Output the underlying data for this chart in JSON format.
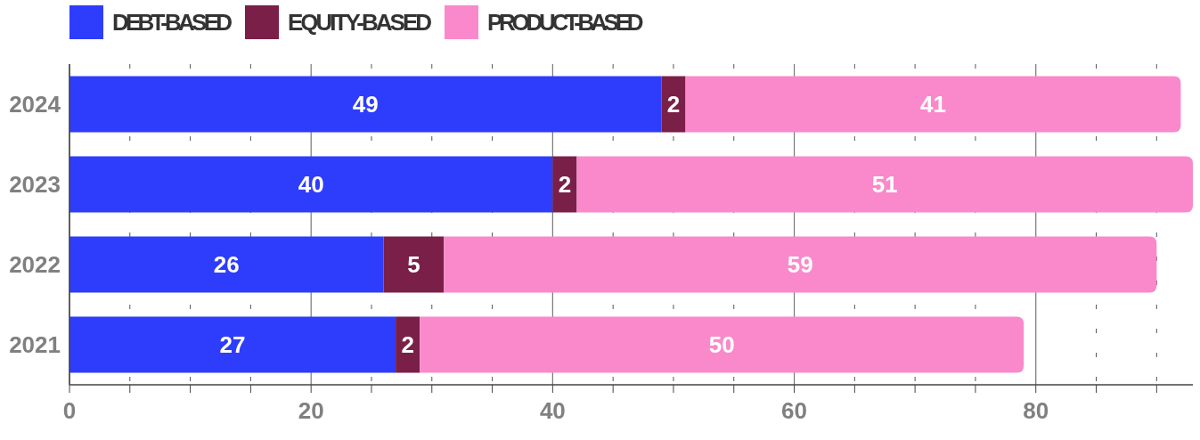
{
  "chart_data": {
    "type": "bar",
    "orientation": "horizontal",
    "stacked": true,
    "categories": [
      "2024",
      "2023",
      "2022",
      "2021"
    ],
    "series": [
      {
        "name": "DEBT-BASED",
        "color": "#2e3cfc",
        "values": [
          49,
          40,
          26,
          27
        ]
      },
      {
        "name": "EQUITY-BASED",
        "color": "#7a1f48",
        "values": [
          2,
          2,
          5,
          2
        ]
      },
      {
        "name": "PRODUCT-BASED",
        "color": "#fa89cb",
        "values": [
          41,
          51,
          59,
          50
        ]
      }
    ],
    "xlim": [
      0,
      93
    ],
    "xticks": [
      0,
      {
        "value": 5,
        "label": null
      },
      {
        "value": 10,
        "label": null
      },
      {
        "value": 15,
        "label": null
      },
      20,
      {
        "value": 25,
        "label": null
      },
      {
        "value": 30,
        "label": null
      },
      {
        "value": 35,
        "label": null
      },
      40,
      {
        "value": 45,
        "label": null
      },
      {
        "value": 50,
        "label": null
      },
      {
        "value": 55,
        "label": null
      },
      60,
      {
        "value": 65,
        "label": null
      },
      {
        "value": 70,
        "label": null
      },
      {
        "value": 75,
        "label": null
      },
      80,
      {
        "value": 85,
        "label": null
      },
      {
        "value": 90,
        "label": null
      }
    ],
    "grid": "x",
    "legend": "top left",
    "data_labels": true
  }
}
